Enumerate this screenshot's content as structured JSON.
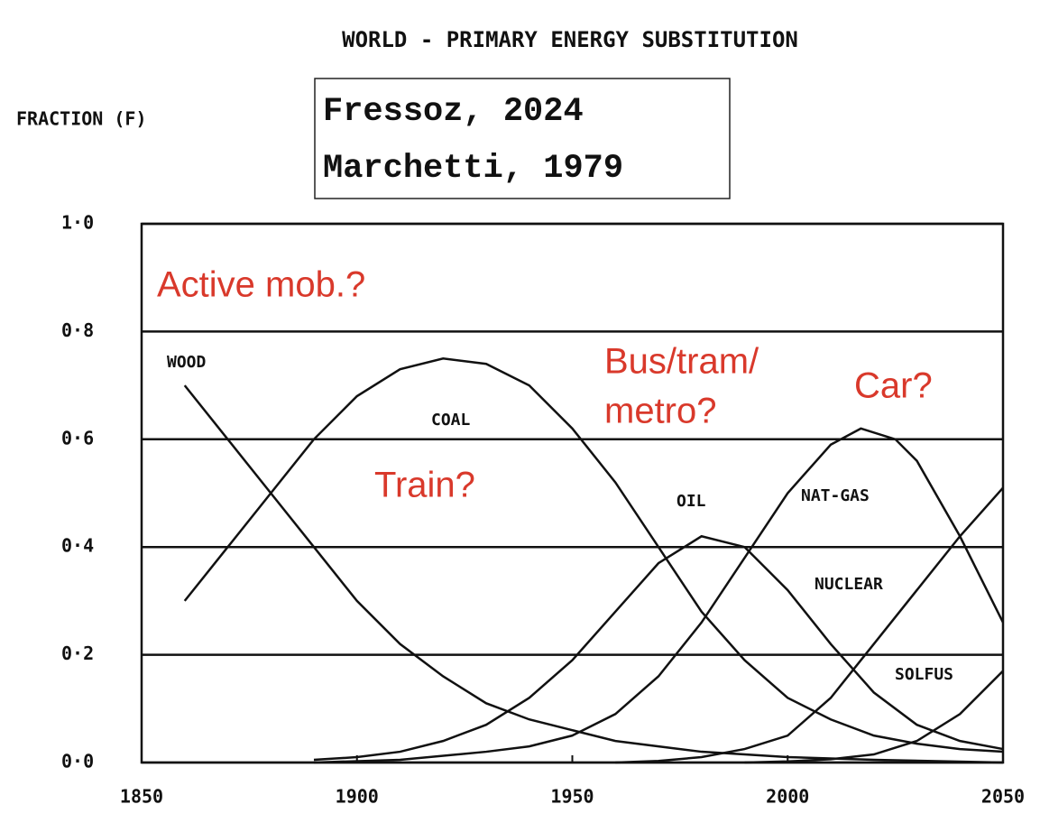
{
  "chart_data": {
    "type": "line",
    "title": "WORLD - PRIMARY ENERGY SUBSTITUTION",
    "y_label": "FRACTION (F)",
    "annotations": [
      "Fressoz, 2024",
      "Marchetti, 1979",
      "Active mob.?",
      "Bus/tram/",
      "metro?",
      "Car?",
      "Train?"
    ],
    "xlim": [
      1850,
      2050
    ],
    "xticks": [
      1850,
      1900,
      1950,
      2000,
      2050
    ],
    "ylim": [
      0,
      1
    ],
    "yticks": [
      {
        "value": 0,
        "label": "0·0"
      },
      {
        "value": 0.2,
        "label": "0·2"
      },
      {
        "value": 0.4,
        "label": "0·4"
      },
      {
        "value": 0.6,
        "label": "0·6"
      },
      {
        "value": 0.8,
        "label": "0·8"
      },
      {
        "value": 1,
        "label": "1·0"
      }
    ],
    "grid": true,
    "series": [
      {
        "name": "WOOD",
        "color": "#111111",
        "x": [
          1860,
          1870,
          1880,
          1890,
          1900,
          1910,
          1920,
          1930,
          1940,
          1950,
          1960,
          1970,
          1980,
          1990,
          2000,
          2020,
          2050
        ],
        "values": [
          0.7,
          0.6,
          0.5,
          0.4,
          0.3,
          0.22,
          0.16,
          0.11,
          0.08,
          0.06,
          0.04,
          0.03,
          0.02,
          0.015,
          0.01,
          0.005,
          0.0
        ]
      },
      {
        "name": "COAL",
        "color": "#111111",
        "x": [
          1860,
          1870,
          1880,
          1890,
          1900,
          1910,
          1920,
          1930,
          1940,
          1950,
          1960,
          1970,
          1980,
          1990,
          2000,
          2010,
          2020,
          2030,
          2040,
          2050
        ],
        "values": [
          0.3,
          0.4,
          0.5,
          0.6,
          0.68,
          0.73,
          0.75,
          0.74,
          0.7,
          0.62,
          0.52,
          0.4,
          0.28,
          0.19,
          0.12,
          0.08,
          0.05,
          0.035,
          0.025,
          0.02
        ]
      },
      {
        "name": "OIL",
        "color": "#111111",
        "x": [
          1890,
          1900,
          1910,
          1920,
          1930,
          1940,
          1950,
          1960,
          1970,
          1980,
          1990,
          2000,
          2010,
          2020,
          2030,
          2040,
          2050
        ],
        "values": [
          0.005,
          0.01,
          0.02,
          0.04,
          0.07,
          0.12,
          0.19,
          0.28,
          0.37,
          0.42,
          0.4,
          0.32,
          0.22,
          0.13,
          0.07,
          0.04,
          0.025
        ]
      },
      {
        "name": "NAT-GAS",
        "color": "#111111",
        "x": [
          1890,
          1910,
          1930,
          1940,
          1950,
          1960,
          1970,
          1980,
          1990,
          2000,
          2010,
          2017,
          2025,
          2030,
          2040,
          2050
        ],
        "values": [
          0.0,
          0.005,
          0.02,
          0.03,
          0.05,
          0.09,
          0.16,
          0.26,
          0.38,
          0.5,
          0.59,
          0.62,
          0.6,
          0.56,
          0.42,
          0.26
        ]
      },
      {
        "name": "NUCLEAR",
        "color": "#111111",
        "x": [
          1960,
          1970,
          1980,
          1990,
          2000,
          2010,
          2020,
          2030,
          2040,
          2050
        ],
        "values": [
          0.0,
          0.003,
          0.01,
          0.025,
          0.05,
          0.12,
          0.22,
          0.32,
          0.42,
          0.51
        ]
      },
      {
        "name": "SOLFUS",
        "color": "#111111",
        "x": [
          1990,
          2000,
          2010,
          2020,
          2030,
          2040,
          2050
        ],
        "values": [
          0.0,
          0.002,
          0.006,
          0.015,
          0.04,
          0.09,
          0.17
        ]
      }
    ]
  }
}
